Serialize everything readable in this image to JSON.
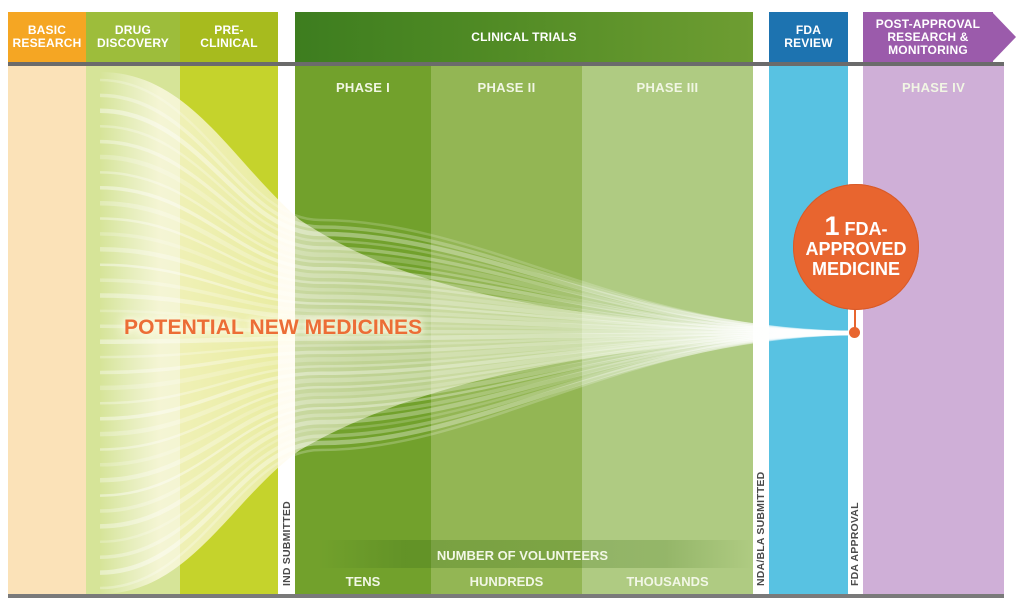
{
  "stages": {
    "basic_research": "BASIC\nRESEARCH",
    "drug_discovery": "DRUG\nDISCOVERY",
    "pre_clinical": "PRE-\nCLINICAL",
    "clinical_trials": "CLINICAL TRIALS",
    "fda_review": "FDA\nREVIEW",
    "post_approval": "POST-APPROVAL\nRESEARCH &\nMONITORING"
  },
  "phases": {
    "phase1": "PHASE I",
    "phase2": "PHASE II",
    "phase3": "PHASE III",
    "phase4": "PHASE IV"
  },
  "milestones": {
    "ind": "IND SUBMITTED",
    "nda": "NDA/BLA SUBMITTED",
    "fda_approval": "FDA APPROVAL"
  },
  "volunteers": {
    "title": "NUMBER OF VOLUNTEERS",
    "tens": "TENS",
    "hundreds": "HUNDREDS",
    "thousands": "THOUSANDS"
  },
  "labels": {
    "potential": "POTENTIAL NEW MEDICINES",
    "approved_count": "1",
    "approved_line1": "FDA-",
    "approved_line2": "APPROVED",
    "approved_line3": "MEDICINE"
  },
  "colors": {
    "basic": "#fbe0b4",
    "drug": "#d9e69a",
    "pre": "#c6d42c",
    "phase1": "#73a22c",
    "phase2": "#93b654",
    "phase3": "#aecb82",
    "fda": "#58c2e2",
    "post": "#ceaed6",
    "accent": "#e8652f"
  }
}
